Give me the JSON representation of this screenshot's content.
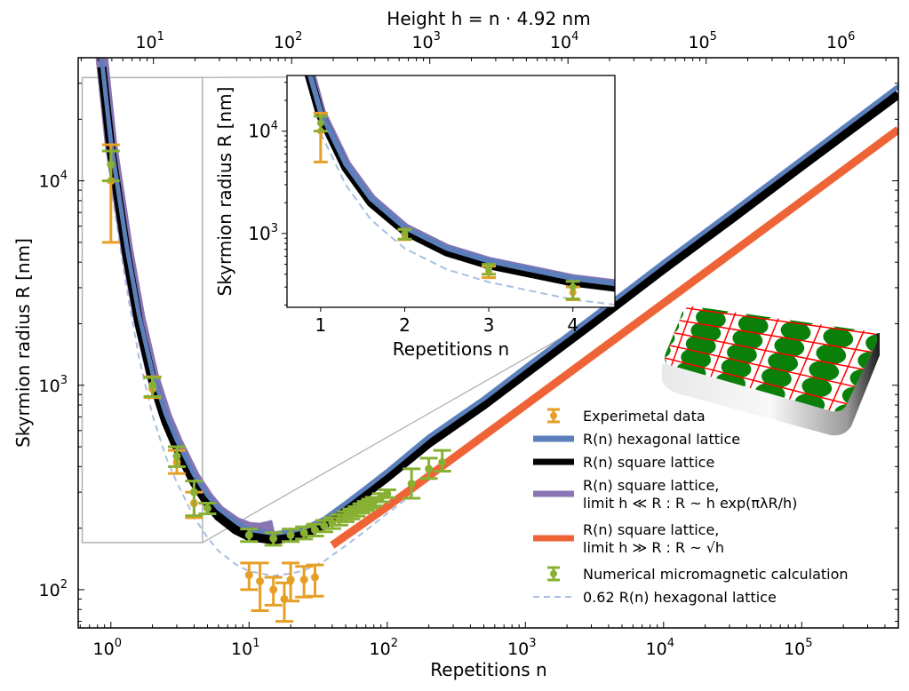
{
  "chart_data": {
    "type": "line",
    "title": "",
    "xlabel": "Repetitions n",
    "ylabel": "Skyrmion radius R [nm]",
    "top_xlabel": "Height h = n · 4.92 nm",
    "xscale": "log",
    "yscale": "log",
    "xlim": [
      0.58,
      500000
    ],
    "ylim": [
      65,
      40000
    ],
    "top_axis_factor": 4.92,
    "xticks": [
      {
        "v": 1,
        "e": "0"
      },
      {
        "v": 10,
        "e": "1"
      },
      {
        "v": 100,
        "e": "2"
      },
      {
        "v": 1000,
        "e": "3"
      },
      {
        "v": 10000,
        "e": "4"
      },
      {
        "v": 100000,
        "e": "5"
      }
    ],
    "yticks": [
      {
        "v": 100,
        "e": "2"
      },
      {
        "v": 1000,
        "e": "3"
      },
      {
        "v": 10000,
        "e": "4"
      }
    ],
    "top_xticks": [
      {
        "v": 10,
        "e": "1"
      },
      {
        "v": 100,
        "e": "2"
      },
      {
        "v": 1000,
        "e": "3"
      },
      {
        "v": 10000,
        "e": "4"
      },
      {
        "v": 100000,
        "e": "5"
      },
      {
        "v": 1000000,
        "e": "6"
      }
    ],
    "tick_base": "10",
    "grid": false,
    "legend_position": "lower-right",
    "colors": {
      "experimental": "#e69f25",
      "hexagonal": "#5b7fbb",
      "square": "#000000",
      "limit_small": "#8874b3",
      "limit_large": "#ee6436",
      "numerical": "#88b032",
      "scaled": "#a8c0e0",
      "zoom_box": "#b0b0b0"
    },
    "series": [
      {
        "name": "R(n) hexagonal lattice",
        "key": "hexagonal",
        "style": "thick-line",
        "x": [
          0.86,
          1,
          1.3,
          1.6,
          2,
          2.5,
          3,
          4,
          5,
          6,
          8,
          10,
          15,
          20,
          25,
          35,
          50,
          70,
          100,
          200,
          500,
          1000,
          3000,
          10000,
          30000,
          100000,
          500000
        ],
        "y": [
          39000,
          15500,
          4800,
          2200,
          1150,
          720,
          540,
          365,
          290,
          250,
          215,
          198,
          188,
          193,
          200,
          222,
          265,
          315,
          380,
          560,
          860,
          1230,
          2150,
          4000,
          6950,
          12800,
          29000
        ]
      },
      {
        "name": "R(n) square lattice",
        "key": "square",
        "style": "thick-line",
        "x": [
          0.86,
          1,
          1.3,
          1.6,
          2,
          2.5,
          3,
          4,
          5,
          6,
          8,
          10,
          15,
          20,
          25,
          35,
          50,
          70,
          100,
          200,
          500,
          1000,
          3000,
          10000,
          30000,
          100000,
          500000
        ],
        "y": [
          36000,
          14300,
          4400,
          2000,
          1060,
          660,
          495,
          335,
          265,
          228,
          196,
          182,
          175,
          180,
          187,
          208,
          248,
          295,
          355,
          520,
          800,
          1140,
          1990,
          3700,
          6400,
          11800,
          26500
        ]
      },
      {
        "name": "R(n) square lattice, limit h ≪ R: R ~ h exp(πλ_R/h)",
        "key": "limit_small",
        "style": "thick-line",
        "x": [
          0.86,
          1,
          1.3,
          1.6,
          2,
          2.5,
          3,
          4,
          5,
          6,
          8,
          10,
          12,
          15
        ],
        "y": [
          40000,
          15200,
          4700,
          2150,
          1120,
          700,
          525,
          355,
          282,
          243,
          212,
          200,
          198,
          205
        ]
      },
      {
        "name": "R(n) square lattice, limit h ≫ R: R ~ √h",
        "key": "limit_large",
        "style": "thick-line",
        "x": [
          40,
          100,
          1000,
          10000,
          100000,
          500000
        ],
        "y": [
          165,
          255,
          800,
          2520,
          7950,
          17800
        ]
      },
      {
        "name": "0.62 R(n) hexagonal lattice",
        "key": "scaled",
        "style": "dashed",
        "x": [
          1,
          1.3,
          1.6,
          2,
          2.5,
          3,
          4,
          5,
          6,
          8,
          10,
          15,
          20,
          25,
          35,
          50,
          70,
          100,
          150
        ],
        "y": [
          9600,
          2980,
          1360,
          713,
          446,
          335,
          226,
          180,
          155,
          133,
          123,
          117,
          120,
          124,
          138,
          164,
          195,
          236,
          290
        ]
      },
      {
        "name": "Experimetal data",
        "key": "experimental",
        "style": "errorbar",
        "points": [
          {
            "x": 1,
            "y": 10000,
            "lo": 5000,
            "hi": 15000
          },
          {
            "x": 2,
            "y": 960,
            "lo": 870,
            "hi": 1100
          },
          {
            "x": 3,
            "y": 420,
            "lo": 370,
            "hi": 480
          },
          {
            "x": 4,
            "y": 265,
            "lo": 225,
            "hi": 300
          },
          {
            "x": 10,
            "y": 118,
            "lo": 100,
            "hi": 135
          },
          {
            "x": 12,
            "y": 110,
            "lo": 79,
            "hi": 135
          },
          {
            "x": 15,
            "y": 100,
            "lo": 84,
            "hi": 115
          },
          {
            "x": 18,
            "y": 90,
            "lo": 70,
            "hi": 108
          },
          {
            "x": 20,
            "y": 112,
            "lo": 88,
            "hi": 135
          },
          {
            "x": 25,
            "y": 112,
            "lo": 92,
            "hi": 130
          },
          {
            "x": 30,
            "y": 115,
            "lo": 93,
            "hi": 132
          }
        ]
      },
      {
        "name": "Numerical micromagnetic calculation",
        "key": "numerical",
        "style": "errorbar",
        "points": [
          {
            "x": 1,
            "y": 12000,
            "lo": 10000,
            "hi": 14000
          },
          {
            "x": 2,
            "y": 1000,
            "lo": 880,
            "hi": 1090
          },
          {
            "x": 3,
            "y": 450,
            "lo": 400,
            "hi": 500
          },
          {
            "x": 4,
            "y": 300,
            "lo": 230,
            "hi": 340
          },
          {
            "x": 5,
            "y": 250,
            "lo": 235,
            "hi": 265
          },
          {
            "x": 10,
            "y": 185,
            "lo": 172,
            "hi": 198
          },
          {
            "x": 15,
            "y": 178,
            "lo": 165,
            "hi": 190
          },
          {
            "x": 20,
            "y": 185,
            "lo": 172,
            "hi": 198
          },
          {
            "x": 25,
            "y": 190,
            "lo": 177,
            "hi": 203
          },
          {
            "x": 30,
            "y": 196,
            "lo": 183,
            "hi": 209
          },
          {
            "x": 35,
            "y": 205,
            "lo": 192,
            "hi": 218
          },
          {
            "x": 40,
            "y": 212,
            "lo": 199,
            "hi": 225
          },
          {
            "x": 45,
            "y": 220,
            "lo": 207,
            "hi": 233
          },
          {
            "x": 50,
            "y": 228,
            "lo": 215,
            "hi": 241
          },
          {
            "x": 55,
            "y": 235,
            "lo": 222,
            "hi": 248
          },
          {
            "x": 60,
            "y": 242,
            "lo": 229,
            "hi": 255
          },
          {
            "x": 65,
            "y": 250,
            "lo": 237,
            "hi": 263
          },
          {
            "x": 70,
            "y": 257,
            "lo": 244,
            "hi": 270
          },
          {
            "x": 75,
            "y": 264,
            "lo": 251,
            "hi": 277
          },
          {
            "x": 80,
            "y": 270,
            "lo": 257,
            "hi": 283
          },
          {
            "x": 90,
            "y": 282,
            "lo": 269,
            "hi": 295
          },
          {
            "x": 100,
            "y": 295,
            "lo": 282,
            "hi": 308
          },
          {
            "x": 150,
            "y": 330,
            "lo": 280,
            "hi": 390
          },
          {
            "x": 200,
            "y": 390,
            "lo": 350,
            "hi": 440
          },
          {
            "x": 250,
            "y": 420,
            "lo": 380,
            "hi": 480
          }
        ]
      }
    ],
    "legend": [
      {
        "key": "experimental",
        "style": "errorbar",
        "lines": [
          "Experimetal data"
        ]
      },
      {
        "key": "hexagonal",
        "style": "line",
        "lines": [
          "R(n) hexagonal lattice"
        ]
      },
      {
        "key": "square",
        "style": "line",
        "lines": [
          "R(n) square lattice"
        ]
      },
      {
        "key": "limit_small",
        "style": "line",
        "lines": [
          "R(n) square lattice,",
          "limit h ≪ R :  R ~ h exp(πλR/h)"
        ]
      },
      {
        "key": "limit_large",
        "style": "line",
        "lines": [
          "R(n) square lattice,",
          "limit h ≫ R :  R ~ √h"
        ]
      },
      {
        "key": "numerical",
        "style": "errorbar",
        "lines": [
          "Numerical micromagnetic calculation"
        ]
      },
      {
        "key": "scaled",
        "style": "dashed",
        "lines": [
          "0.62 R(n) hexagonal lattice"
        ]
      }
    ],
    "zoom_region": {
      "xlim": [
        0.62,
        4.6
      ],
      "ylim": [
        170,
        32000
      ]
    },
    "inset": {
      "xlabel": "Repetitions n",
      "ylabel": "Skyrmion radius R [nm]",
      "xscale": "linear",
      "yscale": "log",
      "xlim": [
        0.6,
        4.5
      ],
      "ylim": [
        190,
        35000
      ],
      "xticks": [
        "1",
        "2",
        "3",
        "4"
      ],
      "yticks": [
        {
          "v": 1000,
          "e": "3"
        },
        {
          "v": 10000,
          "e": "4"
        }
      ]
    },
    "illustration": "skyrmion-lattice-tile"
  }
}
